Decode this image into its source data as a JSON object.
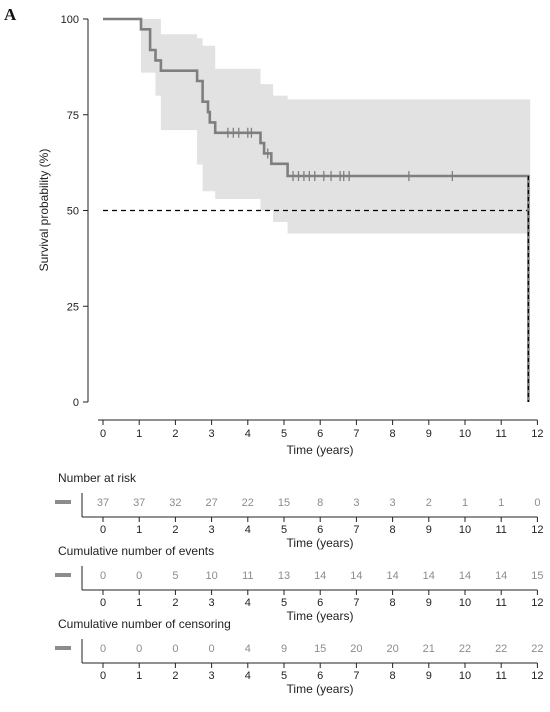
{
  "panel_label": "A",
  "chart_data": {
    "type": "line",
    "subtype": "kaplan-meier",
    "ylabel": "Survival probability (%)",
    "xlabel": "Time (years)",
    "xlim": [
      0,
      12
    ],
    "ylim": [
      0,
      100
    ],
    "xticks": [
      0,
      1,
      2,
      3,
      4,
      5,
      6,
      7,
      8,
      9,
      10,
      11,
      12
    ],
    "yticks": [
      0,
      25,
      50,
      75,
      100
    ],
    "grid": false,
    "colors": {
      "curve": "#7f7f7f",
      "ci_band": "#e2e2e2",
      "median_line": "#000000",
      "risk_text": "#8c8c8c"
    },
    "survival_curve": {
      "steps": [
        [
          0,
          100
        ],
        [
          1.05,
          97.3
        ],
        [
          1.3,
          91.9
        ],
        [
          1.45,
          89.2
        ],
        [
          1.6,
          86.5
        ],
        [
          2.6,
          83.8
        ],
        [
          2.75,
          78.4
        ],
        [
          2.9,
          75.7
        ],
        [
          2.95,
          73.0
        ],
        [
          3.1,
          70.3
        ],
        [
          4.35,
          67.6
        ],
        [
          4.45,
          64.9
        ],
        [
          4.65,
          62.2
        ],
        [
          5.1,
          59.0
        ],
        [
          11.75,
          0
        ]
      ],
      "end_x": 11.8
    },
    "confidence_band": {
      "steps": [
        [
          0,
          100,
          100
        ],
        [
          1.05,
          100,
          86
        ],
        [
          1.45,
          100,
          80
        ],
        [
          1.6,
          96,
          71
        ],
        [
          2.6,
          95,
          62
        ],
        [
          2.75,
          93,
          55
        ],
        [
          3.1,
          87,
          53
        ],
        [
          4.35,
          83,
          50
        ],
        [
          4.7,
          80,
          47
        ],
        [
          5.1,
          79,
          44
        ],
        [
          11.75,
          79,
          44
        ]
      ],
      "end_x": 11.8
    },
    "censor_marks": [
      3.45,
      3.6,
      3.75,
      4.0,
      4.1,
      4.55,
      5.25,
      5.4,
      5.55,
      5.7,
      5.85,
      6.1,
      6.3,
      6.55,
      6.65,
      6.8,
      8.45,
      9.65
    ],
    "median_line": {
      "y": 50,
      "x_start": 0,
      "x_end": 11.75
    },
    "tables": [
      {
        "title": "Number at risk",
        "values": [
          37,
          37,
          32,
          27,
          22,
          15,
          8,
          3,
          3,
          2,
          1,
          1,
          0
        ],
        "xlabel": "Time (years)"
      },
      {
        "title": "Cumulative number of events",
        "values": [
          0,
          0,
          5,
          10,
          11,
          13,
          14,
          14,
          14,
          14,
          14,
          14,
          15
        ],
        "xlabel": "Time (years)"
      },
      {
        "title": "Cumulative number of censoring",
        "values": [
          0,
          0,
          0,
          0,
          4,
          9,
          15,
          20,
          20,
          21,
          22,
          22,
          22
        ],
        "xlabel": "Time (years)"
      }
    ]
  }
}
